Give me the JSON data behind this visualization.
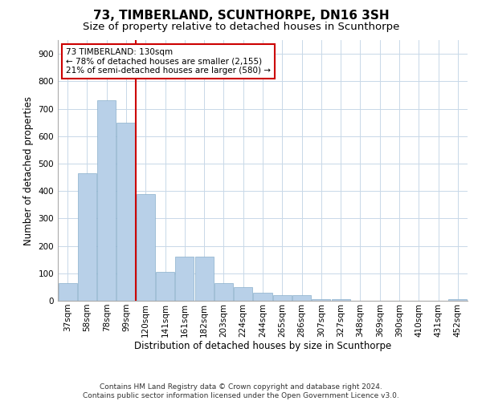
{
  "title": "73, TIMBERLAND, SCUNTHORPE, DN16 3SH",
  "subtitle": "Size of property relative to detached houses in Scunthorpe",
  "xlabel": "Distribution of detached houses by size in Scunthorpe",
  "ylabel": "Number of detached properties",
  "categories": [
    "37sqm",
    "58sqm",
    "78sqm",
    "99sqm",
    "120sqm",
    "141sqm",
    "161sqm",
    "182sqm",
    "203sqm",
    "224sqm",
    "244sqm",
    "265sqm",
    "286sqm",
    "307sqm",
    "327sqm",
    "348sqm",
    "369sqm",
    "390sqm",
    "410sqm",
    "431sqm",
    "452sqm"
  ],
  "values": [
    65,
    465,
    730,
    650,
    390,
    105,
    160,
    160,
    65,
    50,
    30,
    20,
    20,
    7,
    7,
    0,
    0,
    0,
    0,
    0,
    7
  ],
  "bar_color": "#b8d0e8",
  "bar_edge_color": "#8ab0cc",
  "vline_color": "#cc0000",
  "annotation_text": "73 TIMBERLAND: 130sqm\n← 78% of detached houses are smaller (2,155)\n21% of semi-detached houses are larger (580) →",
  "annotation_box_color": "#ffffff",
  "annotation_box_edge": "#cc0000",
  "ylim": [
    0,
    950
  ],
  "yticks": [
    0,
    100,
    200,
    300,
    400,
    500,
    600,
    700,
    800,
    900
  ],
  "footer_line1": "Contains HM Land Registry data © Crown copyright and database right 2024.",
  "footer_line2": "Contains public sector information licensed under the Open Government Licence v3.0.",
  "background_color": "#ffffff",
  "grid_color": "#c8d8e8",
  "title_fontsize": 11,
  "subtitle_fontsize": 9.5,
  "axis_label_fontsize": 8.5,
  "tick_fontsize": 7.5,
  "footer_fontsize": 6.5,
  "annotation_fontsize": 7.5
}
